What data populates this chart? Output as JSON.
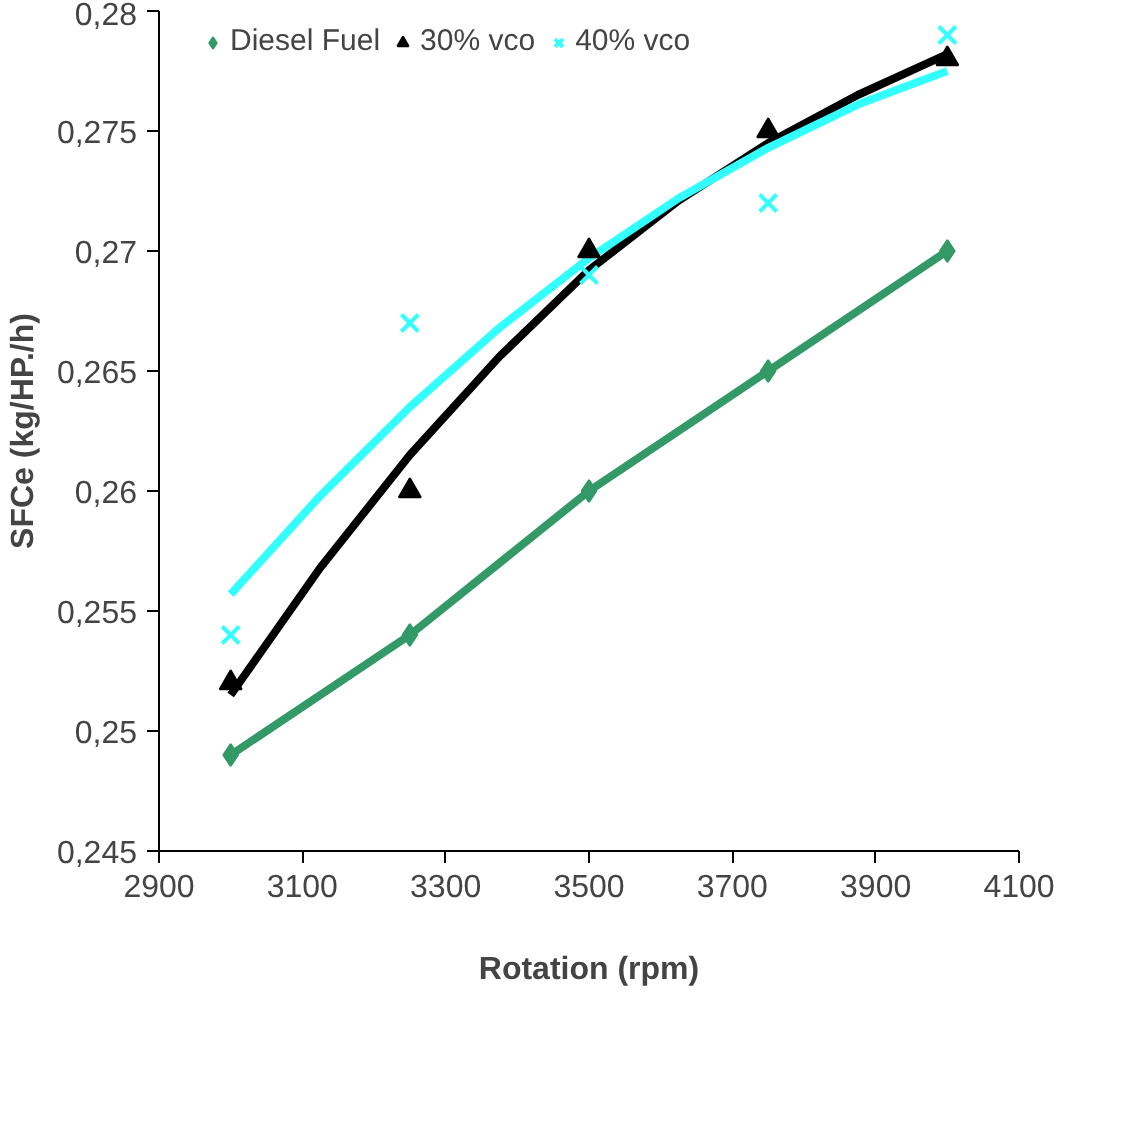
{
  "chart_data": {
    "type": "scatter",
    "xlabel": "Rotation (rpm)",
    "ylabel": "SFCe (kg/HP./h)",
    "xlim": [
      2900,
      4100
    ],
    "xticks": [
      2900,
      3100,
      3300,
      3500,
      3700,
      3900,
      4100
    ],
    "ylim": [
      0.245,
      0.28
    ],
    "yticks": [
      {
        "value": 0.245,
        "label": "0,245"
      },
      {
        "value": 0.25,
        "label": "0,25"
      },
      {
        "value": 0.255,
        "label": "0,255"
      },
      {
        "value": 0.26,
        "label": "0,26"
      },
      {
        "value": 0.265,
        "label": "0,265"
      },
      {
        "value": 0.27,
        "label": "0,27"
      },
      {
        "value": 0.275,
        "label": "0,275"
      },
      {
        "value": 0.28,
        "label": "0,28"
      }
    ],
    "grid": false,
    "legend": "top",
    "series": [
      {
        "name": "Diesel Fuel",
        "type": "line",
        "marker": "diamond",
        "color": "#339966",
        "x": [
          3000,
          3250,
          3500,
          3750,
          4000
        ],
        "values": [
          0.249,
          0.254,
          0.26,
          0.265,
          0.27
        ]
      },
      {
        "name": "30% vco",
        "marker": "triangle",
        "color": "#000000",
        "x": [
          3000,
          3250,
          3500,
          3750,
          4000
        ],
        "values": [
          0.252,
          0.26,
          0.27,
          0.275,
          0.278
        ]
      },
      {
        "name": "40% vco",
        "marker": "cross",
        "color": "#33ffff",
        "x": [
          3000,
          3250,
          3500,
          3750,
          4000
        ],
        "values": [
          0.254,
          0.267,
          0.269,
          0.272,
          0.279
        ]
      },
      {
        "type": "line",
        "marker": "none",
        "color": "#000000",
        "x": [
          3000,
          3125,
          3250,
          3375,
          3500,
          3625,
          3750,
          3875,
          4000
        ],
        "values": [
          0.2515,
          0.2568,
          0.2615,
          0.2656,
          0.2692,
          0.2721,
          0.2745,
          0.2765,
          0.2782
        ]
      },
      {
        "type": "line",
        "marker": "none",
        "color": "#33ffff",
        "x": [
          3000,
          3125,
          3250,
          3375,
          3500,
          3625,
          3750,
          3875,
          4000
        ],
        "values": [
          0.2557,
          0.2598,
          0.2635,
          0.2668,
          0.2697,
          0.2722,
          0.2743,
          0.2761,
          0.2775
        ]
      }
    ]
  }
}
